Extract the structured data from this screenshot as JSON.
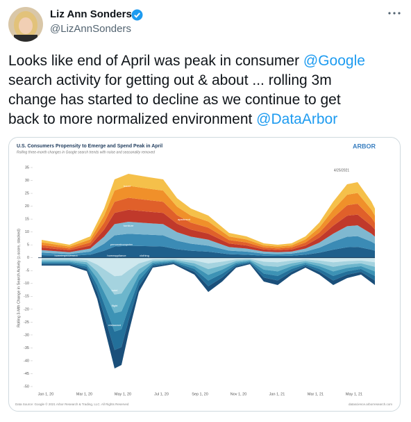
{
  "tweet": {
    "author": {
      "name": "Liz Ann Sonders",
      "handle": "@LizAnnSonders"
    },
    "lines": [
      [
        {
          "text": "Looks like end of April was peak in consumer "
        },
        {
          "text": "@Google",
          "mention": true
        }
      ],
      [
        {
          "text": "search activity for getting out & about ... rolling 3m"
        }
      ],
      [
        {
          "text": "change has started to decline as we continue to get"
        }
      ],
      [
        {
          "text": "back to more normalized environment "
        },
        {
          "text": "@DataArbor",
          "mention": true
        }
      ]
    ]
  },
  "image": {
    "title": "U.S. Consumers Propensity to Emerge and Spend Peak in April",
    "subtitle": "Rolling three-month changes in Google search trends with noise and seasonality removed",
    "logo": "ARBOR",
    "y_label": "Rolling 3-Mth Change in Search Activity (z-score, stacked)",
    "ylim": [
      -52,
      37
    ],
    "yticks": [
      35,
      30,
      25,
      20,
      15,
      10,
      5,
      0,
      -5,
      -10,
      -15,
      -20,
      -25,
      -30,
      -35,
      -40,
      -45,
      -50
    ],
    "x_labels": [
      "Jan 1, 20",
      "Mar 1, 20",
      "May 1, 20",
      "Jul 1, 20",
      "Sep 1, 20",
      "Nov 1, 20",
      "Jan 1, 21",
      "Mar 1, 21",
      "May 1, 21"
    ],
    "annotation": "4/25/2021",
    "stream_labels": [
      "travel",
      "furniture",
      "personalcomputer",
      "homeimprovement",
      "homeappliance",
      "clothing",
      "apartment",
      "hotel",
      "flight",
      "restaurant"
    ],
    "source": "Data Source: Google © 2021 Arbor Research & Trading, LLC. All Rights Reserved",
    "site": "datascience.arborresearch.com"
  }
}
